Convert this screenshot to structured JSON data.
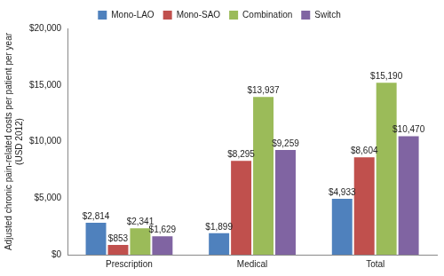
{
  "chart_data": {
    "type": "bar",
    "y_label": [
      "Adjusted chronic pain-related costs per patient per year",
      "(USD 2012)"
    ],
    "categories": [
      "Prescription",
      "Medical",
      "Total"
    ],
    "series": [
      {
        "name": "Mono-LAO",
        "color": "#4f81bd",
        "values": [
          2814,
          1899,
          4933
        ],
        "value_labels": [
          "$2,814",
          "$1,899",
          "$4,933"
        ]
      },
      {
        "name": "Mono-SAO",
        "color": "#c0504d",
        "values": [
          853,
          8295,
          8604
        ],
        "value_labels": [
          "$853",
          "$8,295",
          "$8,604"
        ]
      },
      {
        "name": "Combination",
        "color": "#9bbb59",
        "values": [
          2341,
          13937,
          15190
        ],
        "value_labels": [
          "$2,341",
          "$13,937",
          "$15,190"
        ]
      },
      {
        "name": "Switch",
        "color": "#8064a2",
        "values": [
          1629,
          9259,
          10470
        ],
        "value_labels": [
          "$1,629",
          "$9,259",
          "$10,470"
        ]
      }
    ],
    "ylim": [
      0,
      20000
    ],
    "yticks": [
      {
        "value": 0,
        "label": "$0"
      },
      {
        "value": 5000,
        "label": "$5,000"
      },
      {
        "value": 10000,
        "label": "$10,000"
      },
      {
        "value": 15000,
        "label": "$15,000"
      },
      {
        "value": 20000,
        "label": "$20,000"
      }
    ],
    "grid": false,
    "legend": "top",
    "data_labels": true
  }
}
